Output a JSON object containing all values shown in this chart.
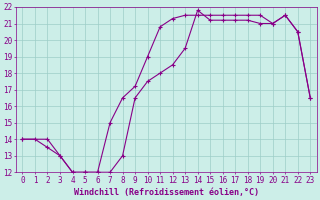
{
  "xlabel": "Windchill (Refroidissement éolien,°C)",
  "xlim": [
    -0.5,
    23.5
  ],
  "ylim": [
    12,
    22
  ],
  "xticks": [
    0,
    1,
    2,
    3,
    4,
    5,
    6,
    7,
    8,
    9,
    10,
    11,
    12,
    13,
    14,
    15,
    16,
    17,
    18,
    19,
    20,
    21,
    22,
    23
  ],
  "yticks": [
    12,
    13,
    14,
    15,
    16,
    17,
    18,
    19,
    20,
    21,
    22
  ],
  "bg_color": "#cceee8",
  "grid_color": "#9dcdc8",
  "line_color": "#880088",
  "line1_x": [
    0,
    1,
    2,
    3,
    4,
    5,
    6,
    7,
    8,
    9,
    10,
    11,
    12,
    13,
    14,
    15,
    16,
    17,
    18,
    19,
    20,
    21,
    22,
    23
  ],
  "line1_y": [
    14.0,
    14.0,
    13.5,
    13.0,
    12.0,
    12.0,
    12.0,
    12.0,
    13.0,
    16.5,
    17.5,
    18.0,
    18.5,
    19.5,
    21.8,
    21.2,
    21.2,
    21.2,
    21.2,
    21.0,
    21.0,
    21.5,
    20.5,
    16.5
  ],
  "line2_x": [
    0,
    2,
    3,
    4,
    5,
    6,
    7,
    8,
    9,
    10,
    11,
    12,
    13,
    14,
    15,
    16,
    17,
    18,
    19,
    20,
    21,
    22,
    23
  ],
  "line2_y": [
    14.0,
    14.0,
    13.0,
    12.0,
    12.0,
    12.0,
    15.0,
    16.5,
    17.2,
    19.0,
    20.8,
    21.3,
    21.5,
    21.5,
    21.5,
    21.5,
    21.5,
    21.5,
    21.5,
    21.0,
    21.5,
    20.5,
    16.5
  ],
  "tick_fontsize": 5.5,
  "label_fontsize": 6.0
}
